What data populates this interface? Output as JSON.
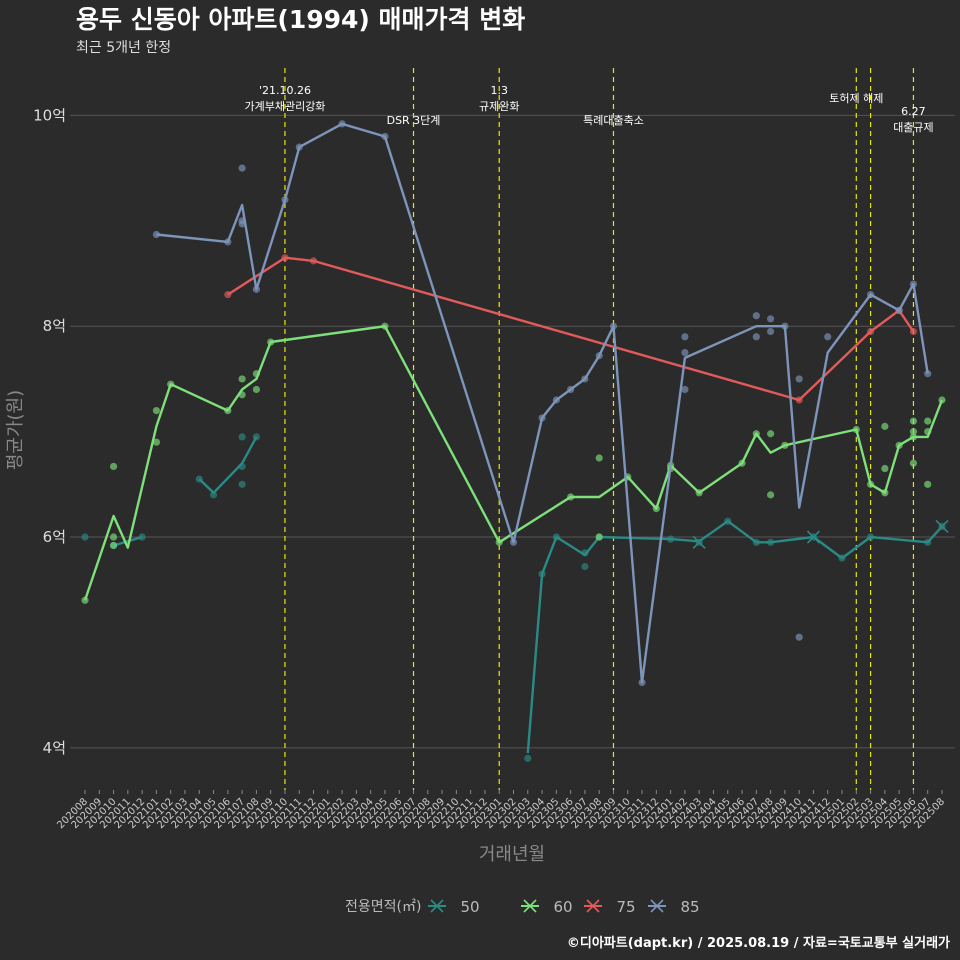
{
  "title": "용두 신동아 아파트(1994) 매매가격 변화",
  "subtitle": "최근 5개년 한정",
  "caption": "©디아파트(dapt.kr) / 2025.08.19 / 자료=국토교통부 실거래가",
  "colors": {
    "background": "#2b2b2b",
    "grid": "#555555",
    "event_line": "#e8e800",
    "s50": "#2a8a86",
    "s60": "#7ee07a",
    "s75": "#e35a5a",
    "s85": "#7d95bb"
  },
  "chart_data": {
    "type": "line",
    "xlabel": "거래년월",
    "ylabel": "평균가(원)",
    "ylim": [
      3.6,
      10.45
    ],
    "yticks": [
      4,
      6,
      8,
      10
    ],
    "ytick_labels": [
      "4억",
      "6억",
      "8억",
      "10억"
    ],
    "x": [
      "202008",
      "202009",
      "202010",
      "202011",
      "202012",
      "202101",
      "202102",
      "202103",
      "202104",
      "202105",
      "202106",
      "202107",
      "202108",
      "202109",
      "202110",
      "202111",
      "202112",
      "202201",
      "202202",
      "202203",
      "202204",
      "202205",
      "202206",
      "202207",
      "202208",
      "202209",
      "202210",
      "202211",
      "202212",
      "202301",
      "202302",
      "202303",
      "202304",
      "202305",
      "202306",
      "202307",
      "202308",
      "202309",
      "202310",
      "202311",
      "202312",
      "202401",
      "202402",
      "202403",
      "202404",
      "202405",
      "202406",
      "202407",
      "202408",
      "202409",
      "202410",
      "202411",
      "202412",
      "202501",
      "202502",
      "202503",
      "202504",
      "202505",
      "202506",
      "202507",
      "202508"
    ],
    "legend_title": "전용면적(㎡)",
    "legend": [
      "50",
      "60",
      "75",
      "85"
    ],
    "events": [
      {
        "x": "202110",
        "label": "'21.10.26\n가계부채관리강화",
        "level": 1
      },
      {
        "x": "202207",
        "label": "DSR 3단계",
        "level": 2
      },
      {
        "x": "202301",
        "label": "1.3\n규제완화",
        "level": 1
      },
      {
        "x": "202309",
        "label": "특례대출축소",
        "level": 2
      },
      {
        "x": "202502",
        "label": "토허제 해제",
        "level": 1
      },
      {
        "x": "202503",
        "label": "",
        "level": 1
      },
      {
        "x": "202506",
        "label": "6.27\n대출규제",
        "level": 2
      }
    ],
    "series": [
      {
        "name": "50",
        "color_key": "s50",
        "line": [
          [
            "202008",
            6.0
          ]
        ],
        "segments": [
          [
            [
              "202104",
              6.55
            ],
            [
              "202105",
              6.42
            ],
            [
              "202107",
              6.7
            ],
            [
              "202108",
              6.95
            ]
          ],
          [
            [
              "202010",
              5.92
            ],
            [
              "202012",
              6.0
            ]
          ],
          [
            [
              "202303",
              3.95
            ],
            [
              "202304",
              5.65
            ],
            [
              "202305",
              6.0
            ],
            [
              "202307",
              5.83
            ],
            [
              "202308",
              6.0
            ],
            [
              "202401",
              5.98
            ],
            [
              "202403",
              5.96
            ],
            [
              "202405",
              6.15
            ],
            [
              "202407",
              5.95
            ],
            [
              "202408",
              5.95
            ],
            [
              "202411",
              6.0
            ],
            [
              "202501",
              5.8
            ],
            [
              "202503",
              6.0
            ],
            [
              "202507",
              5.95
            ],
            [
              "202508",
              6.1
            ]
          ]
        ],
        "points": [
          [
            "202008",
            6.0
          ],
          [
            "202010",
            5.92
          ],
          [
            "202012",
            6.0
          ],
          [
            "202104",
            6.55
          ],
          [
            "202105",
            6.4
          ],
          [
            "202107",
            6.95
          ],
          [
            "202107",
            6.5
          ],
          [
            "202107",
            6.67
          ],
          [
            "202108",
            6.95
          ],
          [
            "202303",
            3.9
          ],
          [
            "202304",
            5.65
          ],
          [
            "202305",
            6.0
          ],
          [
            "202307",
            5.85
          ],
          [
            "202307",
            5.72
          ],
          [
            "202308",
            6.0
          ],
          [
            "202401",
            5.98
          ],
          [
            "202403",
            5.95
          ],
          [
            "202405",
            6.15
          ],
          [
            "202407",
            5.95
          ],
          [
            "202408",
            5.95
          ],
          [
            "202411",
            6.0
          ],
          [
            "202501",
            5.8
          ],
          [
            "202503",
            6.0
          ],
          [
            "202507",
            5.95
          ],
          [
            "202508",
            6.1
          ]
        ],
        "crosses": [
          [
            "202403",
            5.95
          ],
          [
            "202411",
            6.0
          ],
          [
            "202508",
            6.1
          ]
        ]
      },
      {
        "name": "60",
        "color_key": "s60",
        "segments": [
          [
            [
              "202008",
              5.4
            ],
            [
              "202010",
              6.2
            ],
            [
              "202011",
              5.9
            ],
            [
              "202101",
              7.05
            ],
            [
              "202102",
              7.45
            ],
            [
              "202106",
              7.2
            ],
            [
              "202107",
              7.4
            ],
            [
              "202108",
              7.5
            ],
            [
              "202109",
              7.85
            ],
            [
              "202205",
              8.0
            ],
            [
              "202301",
              5.95
            ],
            [
              "202306",
              6.38
            ],
            [
              "202308",
              6.38
            ],
            [
              "202310",
              6.57
            ],
            [
              "202312",
              6.27
            ],
            [
              "202401",
              6.68
            ],
            [
              "202403",
              6.42
            ],
            [
              "202406",
              6.7
            ],
            [
              "202407",
              6.98
            ],
            [
              "202408",
              6.8
            ],
            [
              "202409",
              6.87
            ],
            [
              "202502",
              7.02
            ],
            [
              "202503",
              6.5
            ],
            [
              "202504",
              6.42
            ],
            [
              "202505",
              6.87
            ],
            [
              "202506",
              6.95
            ],
            [
              "202507",
              6.95
            ],
            [
              "202508",
              7.3
            ]
          ]
        ],
        "points": [
          [
            "202008",
            5.4
          ],
          [
            "202010",
            6.67
          ],
          [
            "202010",
            5.92
          ],
          [
            "202010",
            6.0
          ],
          [
            "202101",
            7.2
          ],
          [
            "202101",
            6.9
          ],
          [
            "202102",
            7.45
          ],
          [
            "202106",
            7.2
          ],
          [
            "202107",
            7.35
          ],
          [
            "202107",
            7.5
          ],
          [
            "202108",
            7.4
          ],
          [
            "202108",
            7.55
          ],
          [
            "202109",
            7.85
          ],
          [
            "202205",
            8.0
          ],
          [
            "202301",
            5.95
          ],
          [
            "202306",
            6.38
          ],
          [
            "202308",
            6.75
          ],
          [
            "202308",
            6.0
          ],
          [
            "202310",
            6.57
          ],
          [
            "202312",
            6.27
          ],
          [
            "202401",
            6.68
          ],
          [
            "202401",
            6.65
          ],
          [
            "202403",
            6.42
          ],
          [
            "202406",
            6.7
          ],
          [
            "202407",
            6.98
          ],
          [
            "202408",
            6.4
          ],
          [
            "202408",
            6.98
          ],
          [
            "202409",
            6.87
          ],
          [
            "202502",
            7.02
          ],
          [
            "202503",
            6.5
          ],
          [
            "202504",
            6.42
          ],
          [
            "202504",
            6.65
          ],
          [
            "202504",
            7.05
          ],
          [
            "202505",
            6.87
          ],
          [
            "202506",
            6.95
          ],
          [
            "202506",
            6.7
          ],
          [
            "202506",
            7.0
          ],
          [
            "202506",
            7.1
          ],
          [
            "202507",
            6.5
          ],
          [
            "202507",
            7.0
          ],
          [
            "202507",
            7.1
          ],
          [
            "202508",
            7.3
          ]
        ]
      },
      {
        "name": "75",
        "color_key": "s75",
        "segments": [
          [
            [
              "202106",
              8.3
            ],
            [
              "202110",
              8.65
            ],
            [
              "202112",
              8.62
            ],
            [
              "202410",
              7.3
            ],
            [
              "202503",
              7.95
            ],
            [
              "202505",
              8.15
            ],
            [
              "202506",
              7.95
            ]
          ]
        ],
        "points": [
          [
            "202106",
            8.3
          ],
          [
            "202110",
            8.65
          ],
          [
            "202112",
            8.62
          ],
          [
            "202410",
            7.3
          ],
          [
            "202503",
            7.95
          ],
          [
            "202505",
            8.15
          ],
          [
            "202506",
            7.95
          ]
        ]
      },
      {
        "name": "85",
        "color_key": "s85",
        "segments": [
          [
            [
              "202101",
              8.87
            ],
            [
              "202106",
              8.8
            ],
            [
              "202107",
              9.15
            ],
            [
              "202108",
              8.35
            ],
            [
              "202110",
              9.2
            ],
            [
              "202111",
              9.7
            ],
            [
              "202202",
              9.92
            ],
            [
              "202205",
              9.8
            ],
            [
              "202302",
              5.95
            ],
            [
              "202304",
              7.13
            ],
            [
              "202305",
              7.3
            ],
            [
              "202306",
              7.4
            ],
            [
              "202307",
              7.5
            ],
            [
              "202308",
              7.72
            ],
            [
              "202309",
              8.0
            ],
            [
              "202311",
              4.62
            ],
            [
              "202402",
              7.7
            ],
            [
              "202407",
              8.0
            ],
            [
              "202409",
              8.0
            ],
            [
              "202410",
              6.28
            ],
            [
              "202412",
              7.75
            ],
            [
              "202503",
              8.3
            ],
            [
              "202505",
              8.15
            ],
            [
              "202506",
              8.4
            ],
            [
              "202507",
              7.55
            ]
          ]
        ],
        "points": [
          [
            "202101",
            8.87
          ],
          [
            "202106",
            8.8
          ],
          [
            "202107",
            9.5
          ],
          [
            "202107",
            9.0
          ],
          [
            "202107",
            8.97
          ],
          [
            "202108",
            8.35
          ],
          [
            "202110",
            9.2
          ],
          [
            "202111",
            9.7
          ],
          [
            "202202",
            9.92
          ],
          [
            "202205",
            9.8
          ],
          [
            "202302",
            5.95
          ],
          [
            "202304",
            7.13
          ],
          [
            "202305",
            7.3
          ],
          [
            "202306",
            7.4
          ],
          [
            "202307",
            7.5
          ],
          [
            "202308",
            7.72
          ],
          [
            "202309",
            8.0
          ],
          [
            "202311",
            4.62
          ],
          [
            "202402",
            7.9
          ],
          [
            "202402",
            7.75
          ],
          [
            "202402",
            7.4
          ],
          [
            "202407",
            8.1
          ],
          [
            "202407",
            7.9
          ],
          [
            "202408",
            8.07
          ],
          [
            "202408",
            7.95
          ],
          [
            "202409",
            8.0
          ],
          [
            "202410",
            7.5
          ],
          [
            "202410",
            5.05
          ],
          [
            "202412",
            7.9
          ],
          [
            "202503",
            8.3
          ],
          [
            "202505",
            8.15
          ],
          [
            "202506",
            8.4
          ],
          [
            "202507",
            7.55
          ]
        ]
      }
    ]
  }
}
